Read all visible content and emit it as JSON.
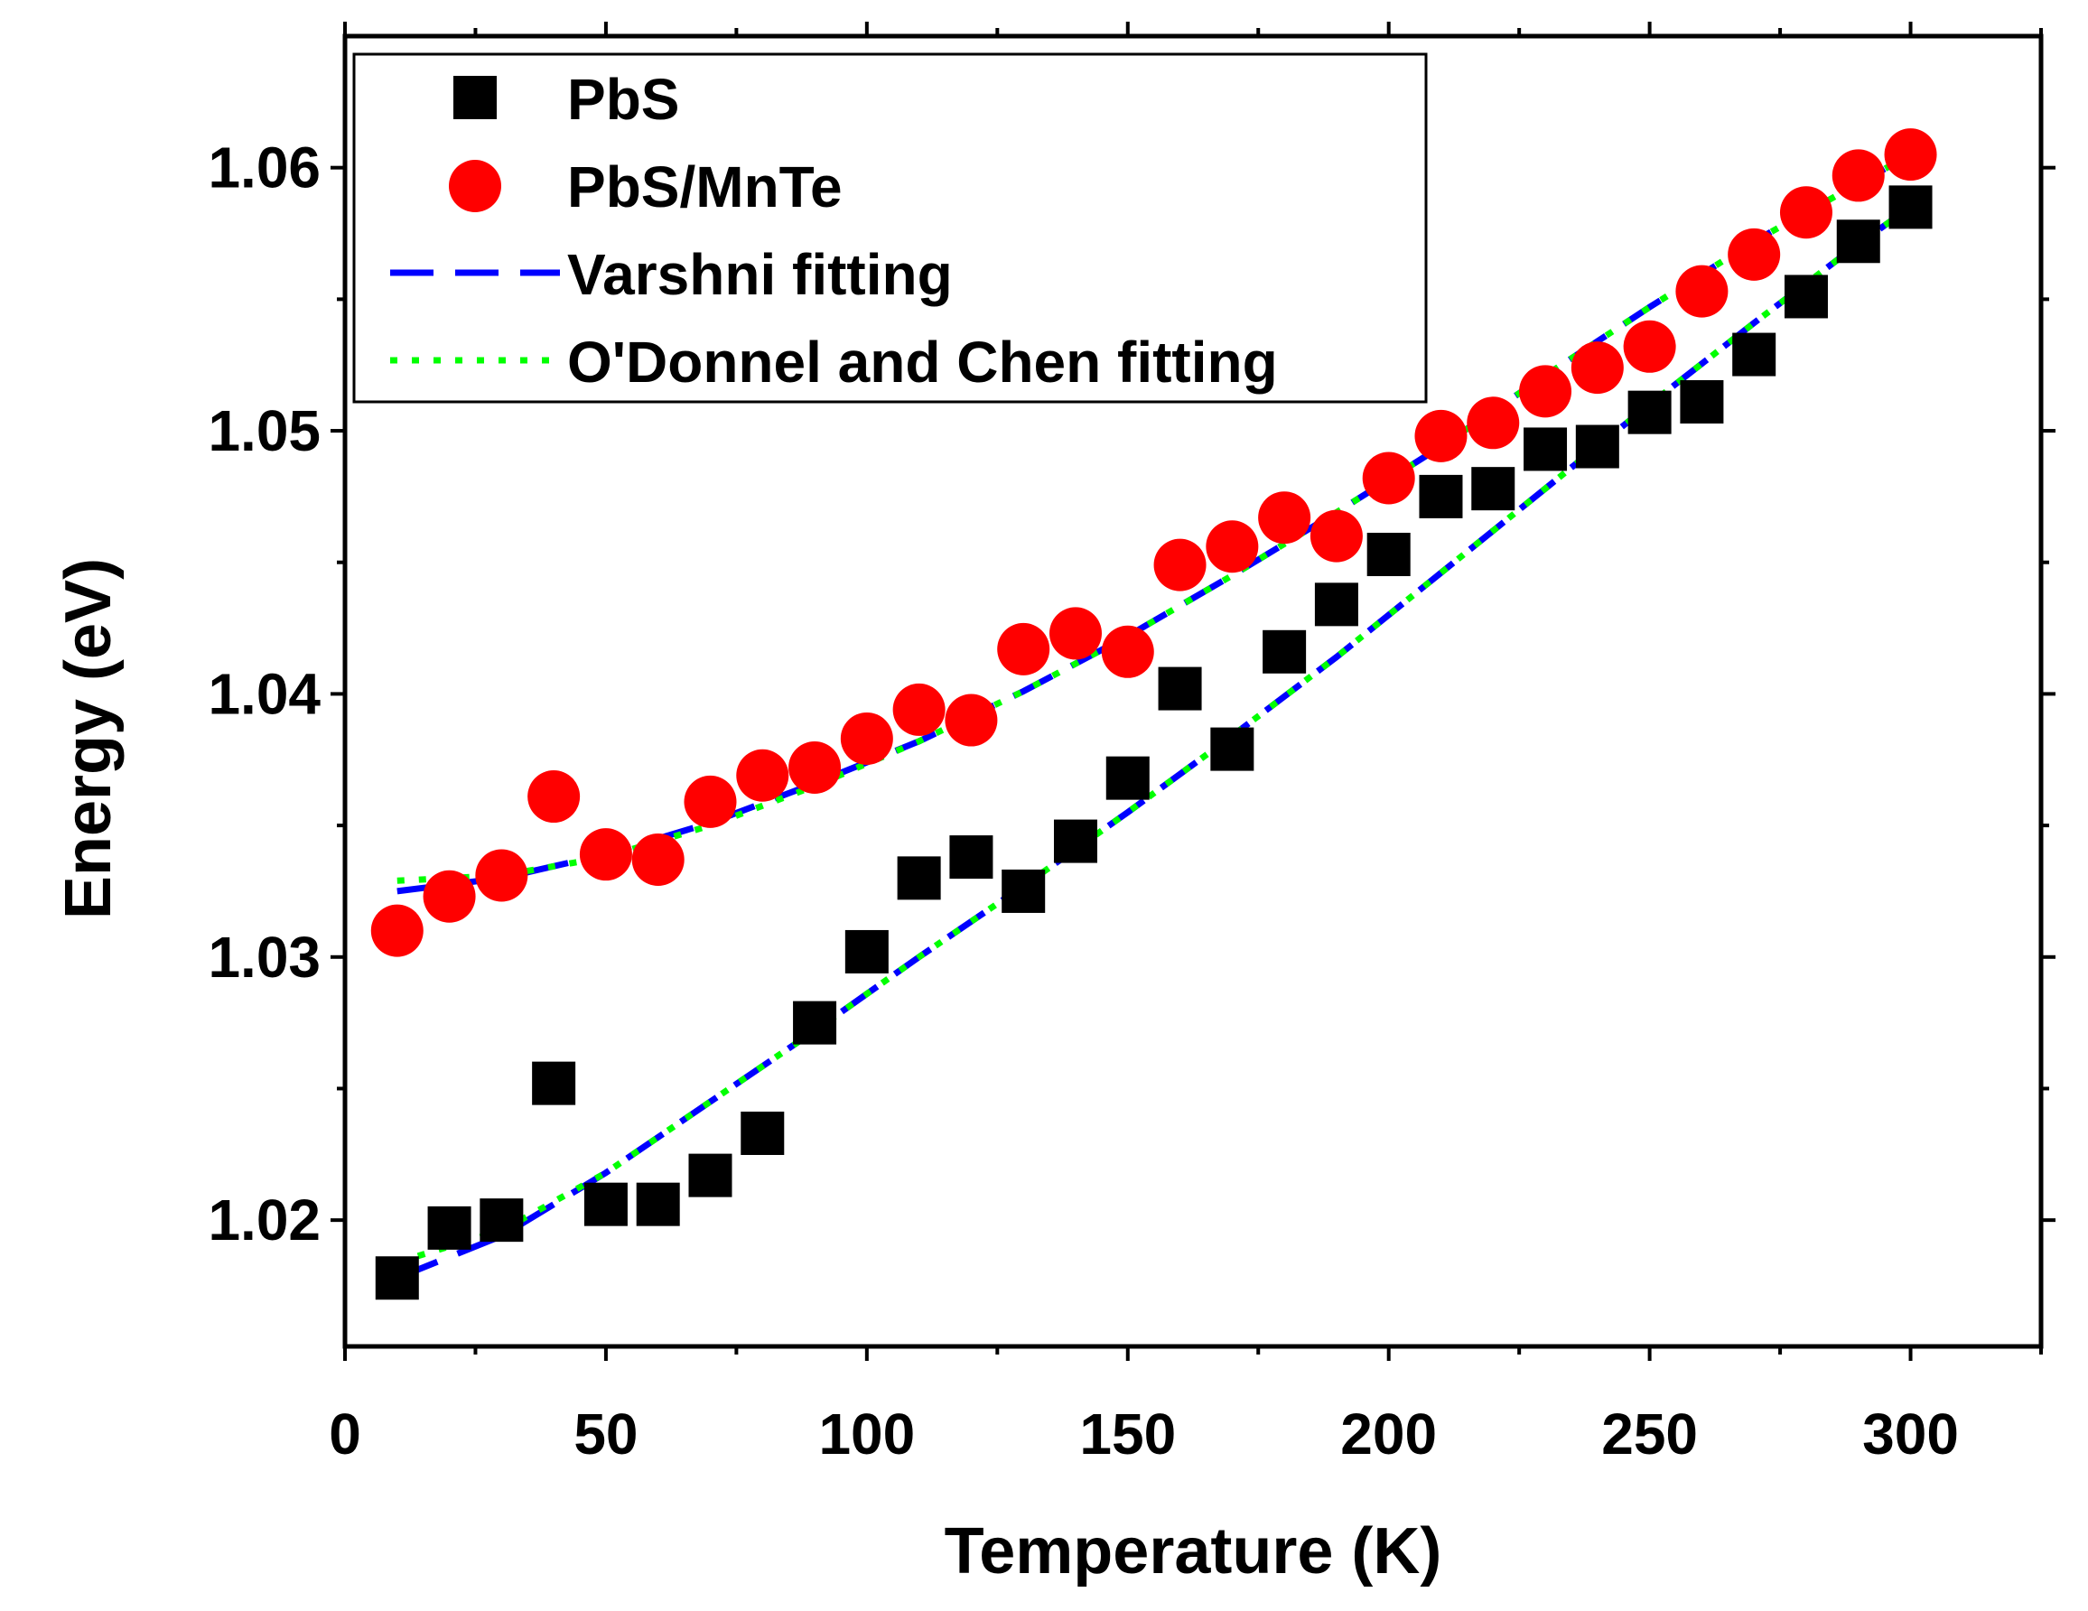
{
  "chart_data": {
    "type": "scatter",
    "title": "",
    "xlabel": "Temperature (K)",
    "ylabel": "Energy (eV)",
    "xlim": [
      0,
      325
    ],
    "ylim": [
      1.0152,
      1.065
    ],
    "xticks": [
      0,
      50,
      100,
      150,
      200,
      250,
      300
    ],
    "xtick_labels": [
      "0",
      "50",
      "100",
      "150",
      "200",
      "250",
      "300"
    ],
    "yticks": [
      1.02,
      1.03,
      1.04,
      1.05,
      1.06
    ],
    "ytick_labels": [
      "1.02",
      "1.03",
      "1.04",
      "1.05",
      "1.06"
    ],
    "grid": false,
    "legend_position": "top-left",
    "series": [
      {
        "name": "PbS",
        "kind": "scatter",
        "marker": "square",
        "color": "#000000",
        "x": [
          10,
          20,
          30,
          40,
          50,
          60,
          70,
          80,
          90,
          100,
          110,
          120,
          130,
          140,
          150,
          160,
          170,
          180,
          190,
          200,
          210,
          220,
          230,
          240,
          250,
          260,
          270,
          280,
          290,
          300
        ],
        "values": [
          1.0178,
          1.0197,
          1.02,
          1.0252,
          1.0206,
          1.0206,
          1.0217,
          1.0233,
          1.0275,
          1.0302,
          1.033,
          1.0338,
          1.0325,
          1.0344,
          1.0368,
          1.0402,
          1.0379,
          1.0416,
          1.0434,
          1.0453,
          1.0475,
          1.0478,
          1.0493,
          1.0494,
          1.0507,
          1.0511,
          1.0529,
          1.0551,
          1.0572,
          1.0585
        ]
      },
      {
        "name": "PbS/MnTe",
        "kind": "scatter",
        "marker": "circle",
        "color": "#ff0000",
        "x": [
          10,
          20,
          30,
          40,
          50,
          60,
          70,
          80,
          90,
          100,
          110,
          120,
          130,
          140,
          150,
          160,
          170,
          180,
          190,
          200,
          210,
          220,
          230,
          240,
          250,
          260,
          270,
          280,
          290,
          300
        ],
        "values": [
          1.031,
          1.0323,
          1.0331,
          1.0361,
          1.0339,
          1.0337,
          1.0359,
          1.0369,
          1.0372,
          1.0383,
          1.0394,
          1.039,
          1.0417,
          1.0423,
          1.0416,
          1.0449,
          1.0456,
          1.0467,
          1.046,
          1.0482,
          1.0498,
          1.0503,
          1.0515,
          1.0524,
          1.0532,
          1.0553,
          1.0567,
          1.0583,
          1.0597,
          1.0605
        ]
      },
      {
        "name": "Varshni fitting",
        "kind": "line",
        "style": "dashed",
        "color": "#0000ff",
        "fits": [
          {
            "x": [
              10,
              30,
              50,
              70,
              90,
              110,
              130,
              150,
              170,
              190,
              210,
              230,
              250,
              270,
              290,
              300
            ],
            "values": [
              1.0325,
              1.033,
              1.0339,
              1.0351,
              1.0366,
              1.0382,
              1.0401,
              1.0422,
              1.0445,
              1.0469,
              1.0494,
              1.0521,
              1.0547,
              1.0572,
              1.0594,
              1.0605
            ]
          },
          {
            "x": [
              10,
              30,
              50,
              70,
              90,
              110,
              130,
              150,
              170,
              190,
              210,
              230,
              250,
              270,
              290,
              300
            ],
            "values": [
              1.0178,
              1.0194,
              1.0218,
              1.0245,
              1.0272,
              1.03,
              1.0327,
              1.0355,
              1.0384,
              1.0414,
              1.0446,
              1.0478,
              1.051,
              1.0541,
              1.0571,
              1.0585
            ]
          }
        ]
      },
      {
        "name": "O'Donnel and Chen fitting",
        "kind": "line",
        "style": "dotted",
        "color": "#00ff00",
        "fits": [
          {
            "x": [
              10,
              30,
              50,
              70,
              90,
              110,
              130,
              150,
              170,
              190,
              210,
              230,
              250,
              270,
              290,
              300
            ],
            "values": [
              1.0329,
              1.0331,
              1.0338,
              1.035,
              1.0365,
              1.0382,
              1.0401,
              1.0422,
              1.0445,
              1.0469,
              1.0494,
              1.0521,
              1.0547,
              1.0572,
              1.0594,
              1.0605
            ]
          },
          {
            "x": [
              10,
              30,
              50,
              70,
              90,
              110,
              130,
              150,
              170,
              190,
              210,
              230,
              250,
              270,
              290,
              300
            ],
            "values": [
              1.0184,
              1.0196,
              1.0218,
              1.0245,
              1.0272,
              1.03,
              1.0327,
              1.0355,
              1.0384,
              1.0414,
              1.0446,
              1.0478,
              1.051,
              1.0541,
              1.0571,
              1.0585
            ]
          }
        ]
      }
    ]
  }
}
